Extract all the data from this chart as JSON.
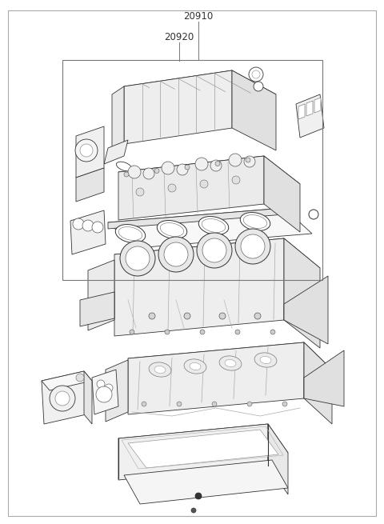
{
  "bg_color": "#ffffff",
  "line_color": "#222222",
  "label_20910": "20910",
  "label_20920": "20920",
  "label_color": "#444444",
  "border_color": "#aaaaaa",
  "inner_box_color": "#777777",
  "part_fill": "#f5f5f5",
  "part_stroke": "#333333",
  "gasket_fill": "#eeeeee",
  "shadow_fill": "#e0e0e0"
}
